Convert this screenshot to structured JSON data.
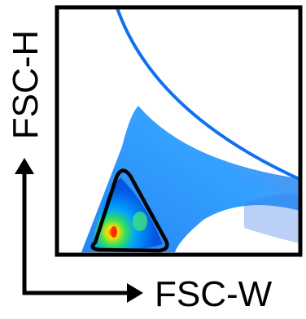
{
  "axes": {
    "x_label": "FSC-W",
    "y_label": "FSC-H"
  }
}
